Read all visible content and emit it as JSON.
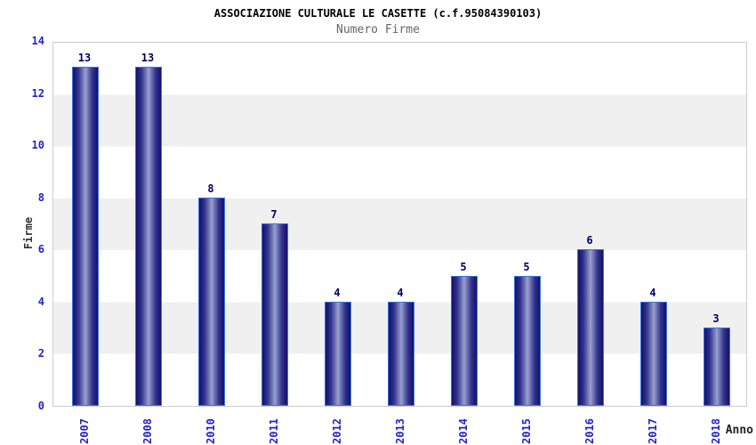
{
  "title": "ASSOCIAZIONE CULTURALE LE CASETTE (c.f.95084390103)",
  "subtitle": "Numero Firme",
  "y_axis_label": "Firme",
  "x_axis_label": "Anno",
  "colors": {
    "tick_label_blue": "#2222cc",
    "value_label_navy": "#000066",
    "bar_border_blue": "#3a76e0",
    "bar_edge_dark": "#12126a",
    "bar_center_light": "#9aa0ce",
    "band_gray": "#f0f0f0",
    "plot_border_gray": "#cccccc",
    "title_black": "#000000",
    "subtitle_gray": "#666666"
  },
  "chart_data": {
    "type": "bar",
    "categories": [
      "2007",
      "2008",
      "2010",
      "2011",
      "2012",
      "2013",
      "2014",
      "2015",
      "2016",
      "2017",
      "2018"
    ],
    "values": [
      13,
      13,
      8,
      7,
      4,
      4,
      5,
      5,
      6,
      4,
      3
    ],
    "title": "ASSOCIAZIONE CULTURALE LE CASETTE (c.f.95084390103)",
    "subtitle": "Numero Firme",
    "xlabel": "Anno",
    "ylabel": "Firme",
    "ylim": [
      0,
      14
    ],
    "yticks": [
      0,
      2,
      4,
      6,
      8,
      10,
      12,
      14
    ],
    "grid": "alternating horizontal gray bands at 2-4, 6-8, 10-12",
    "legend": "none",
    "bar_labels_shown": true,
    "note": "year 2009 absent from x axis"
  }
}
